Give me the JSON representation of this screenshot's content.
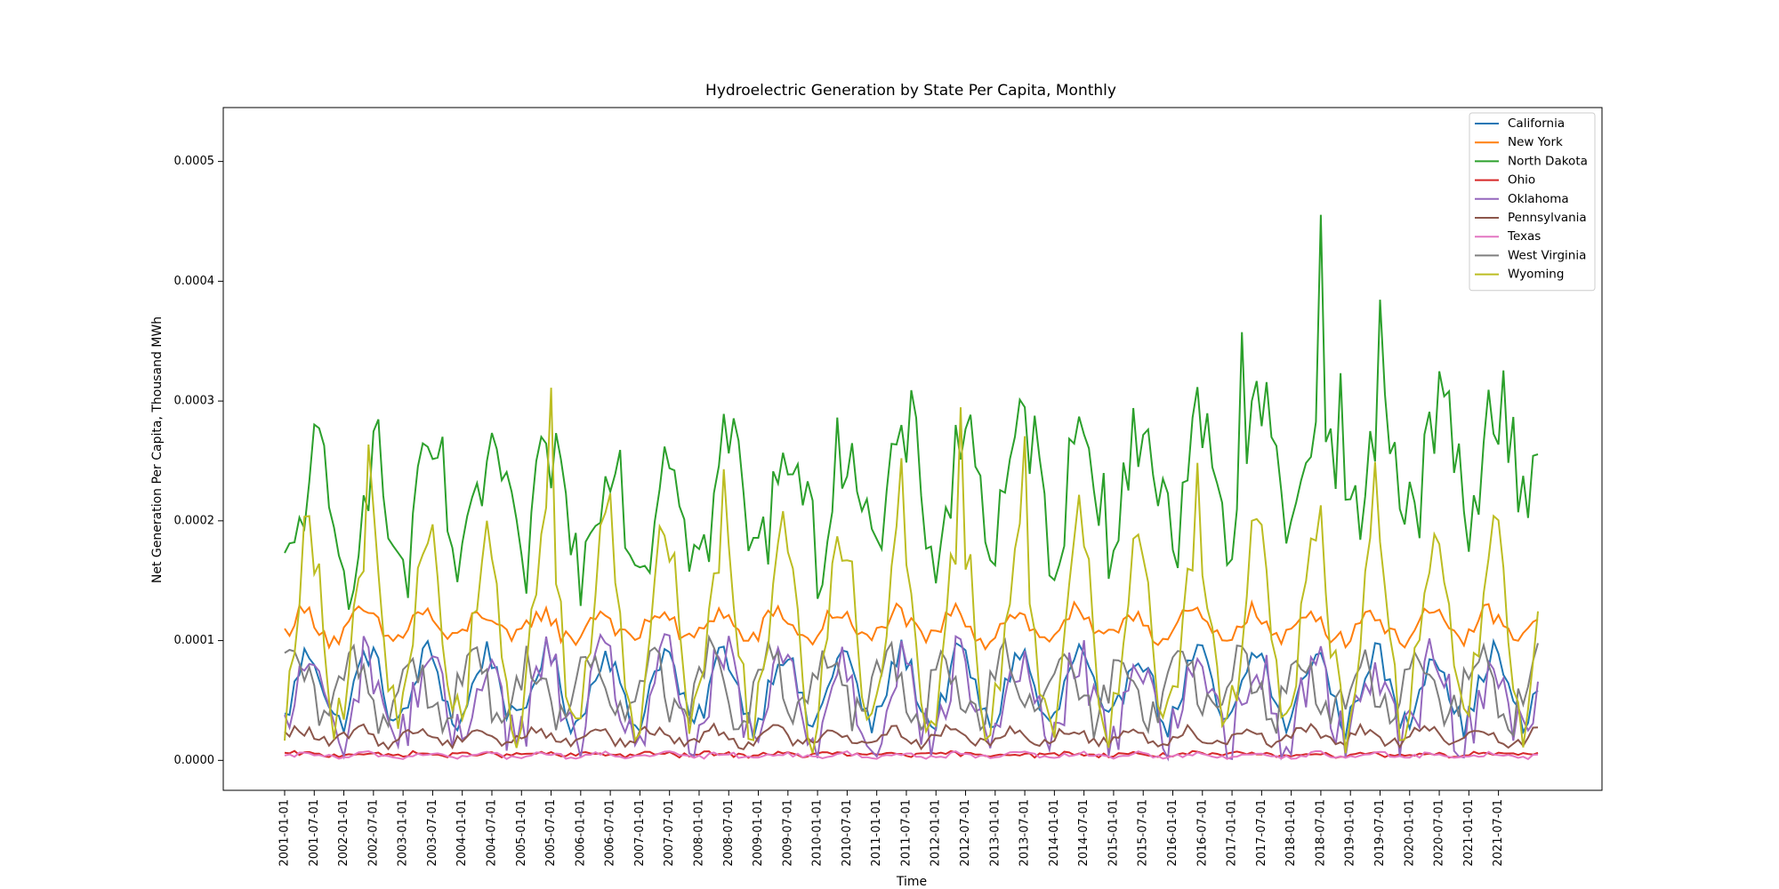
{
  "chart_data": {
    "type": "line",
    "title": "Hydroelectric Generation by State Per Capita, Monthly",
    "xlabel": "Time",
    "ylabel": "Net Generation Per Capita, Thousand MWh",
    "x_ticks": [
      "2001-01-01",
      "2001-07-01",
      "2002-01-01",
      "2002-07-01",
      "2003-01-01",
      "2003-07-01",
      "2004-01-01",
      "2004-07-01",
      "2005-01-01",
      "2005-07-01",
      "2006-01-01",
      "2006-07-01",
      "2007-01-01",
      "2007-07-01",
      "2008-01-01",
      "2008-07-01",
      "2009-01-01",
      "2009-07-01",
      "2010-01-01",
      "2010-07-01",
      "2011-01-01",
      "2011-07-01",
      "2012-01-01",
      "2012-07-01",
      "2013-01-01",
      "2013-07-01",
      "2014-01-01",
      "2014-07-01",
      "2015-01-01",
      "2015-07-01",
      "2016-01-01",
      "2016-07-01",
      "2017-01-01",
      "2017-07-01",
      "2018-01-01",
      "2018-07-01",
      "2019-01-01",
      "2019-07-01",
      "2020-01-01",
      "2020-07-01",
      "2021-01-01",
      "2021-07-01"
    ],
    "x_range": [
      "2001-01-01",
      "2022-03-01"
    ],
    "y_ticks": [
      "0.0000",
      "0.0001",
      "0.0002",
      "0.0003",
      "0.0004",
      "0.0005"
    ],
    "ylim": [
      -2.5e-05,
      0.000545
    ],
    "grid": false,
    "legend_position": "top-right",
    "series": [
      {
        "name": "California",
        "color": "#1f77b4",
        "base": 6e-05,
        "amp": 3e-05,
        "peak_month": 5,
        "noise": 1.2e-05
      },
      {
        "name": "New York",
        "color": "#ff7f0e",
        "base": 0.000112,
        "amp": 1.2e-05,
        "peak_month": 4,
        "noise": 8e-06
      },
      {
        "name": "North Dakota",
        "color": "#2ca02c",
        "base": 0.0002,
        "amp": 5e-05,
        "peak_month": 6,
        "noise": 4e-05,
        "trend": 2.5e-06
      },
      {
        "name": "Ohio",
        "color": "#d62728",
        "base": 5e-06,
        "amp": 1e-06,
        "peak_month": 3,
        "noise": 2e-06
      },
      {
        "name": "Oklahoma",
        "color": "#9467bd",
        "base": 5e-05,
        "amp": 3.5e-05,
        "peak_month": 5,
        "noise": 2.5e-05
      },
      {
        "name": "Pennsylvania",
        "color": "#8c564b",
        "base": 2e-05,
        "amp": 6e-06,
        "peak_month": 3,
        "noise": 5e-06
      },
      {
        "name": "Texas",
        "color": "#e377c2",
        "base": 4e-06,
        "amp": 2e-06,
        "peak_month": 5,
        "noise": 2e-06
      },
      {
        "name": "West Virginia",
        "color": "#7f7f7f",
        "base": 6e-05,
        "amp": 2.5e-05,
        "peak_month": 2,
        "noise": 1.8e-05
      },
      {
        "name": "Wyoming",
        "color": "#bcbd22",
        "base": 0.00011,
        "amp": 8e-05,
        "peak_month": 5,
        "noise": 2.5e-05
      }
    ]
  }
}
